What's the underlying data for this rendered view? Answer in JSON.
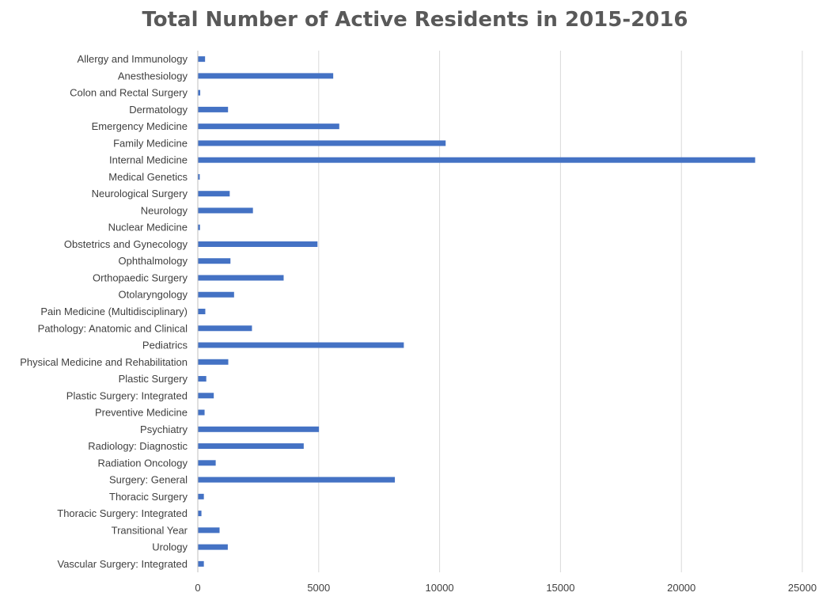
{
  "chart_data": {
    "type": "bar",
    "orientation": "horizontal",
    "title": "Total Number of Active Residents in 2015-2016",
    "xlabel": "",
    "ylabel": "",
    "xlim": [
      0,
      25000
    ],
    "x_ticks": [
      "0",
      "5000",
      "10000",
      "15000",
      "20000",
      "25000"
    ],
    "grid": true,
    "legend": "none",
    "bar_color": "#4472c4",
    "categories": [
      "Allergy and Immunology",
      "Anesthesiology",
      "Colon and Rectal Surgery",
      "Dermatology",
      "Emergency Medicine",
      "Family Medicine",
      "Internal Medicine",
      "Medical Genetics",
      "Neurological Surgery",
      "Neurology",
      "Nuclear Medicine",
      "Obstetrics and Gynecology",
      "Ophthalmology",
      "Orthopaedic Surgery",
      "Otolaryngology",
      "Pain Medicine (Multidisciplinary)",
      "Pathology: Anatomic and Clinical",
      "Pediatrics",
      "Physical Medicine and Rehabilitation",
      "Plastic Surgery",
      "Plastic Surgery: Integrated",
      "Preventive Medicine",
      "Psychiatry",
      "Radiology: Diagnostic",
      "Radiation Oncology",
      "Surgery: General",
      "Thoracic Surgery",
      "Thoracic Surgery: Integrated",
      "Transitional Year",
      "Urology",
      "Vascular Surgery: Integrated"
    ],
    "values": [
      300,
      5600,
      100,
      1250,
      5850,
      10250,
      23050,
      80,
      1320,
      2280,
      90,
      4950,
      1350,
      3550,
      1500,
      310,
      2240,
      8520,
      1260,
      350,
      660,
      280,
      5010,
      4380,
      740,
      8150,
      250,
      150,
      900,
      1240,
      250
    ]
  }
}
